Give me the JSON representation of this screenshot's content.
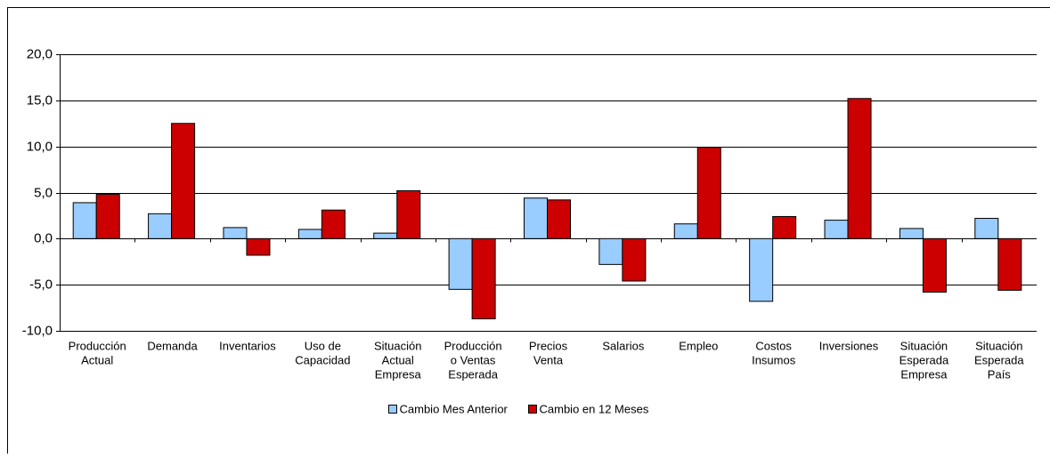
{
  "chart_data": {
    "type": "bar",
    "categories": [
      [
        "Producción",
        "Actual"
      ],
      [
        "Demanda"
      ],
      [
        "Inventarios"
      ],
      [
        "Uso de",
        "Capacidad"
      ],
      [
        "Situación",
        "Actual",
        "Empresa"
      ],
      [
        "Producción",
        "o Ventas",
        "Esperada"
      ],
      [
        "Precios",
        "Venta"
      ],
      [
        "Salarios"
      ],
      [
        "Empleo"
      ],
      [
        "Costos",
        "Insumos"
      ],
      [
        "Inversiones"
      ],
      [
        "Situación",
        "Esperada",
        "Empresa"
      ],
      [
        "Situación",
        "Esperada",
        "País"
      ]
    ],
    "series": [
      {
        "name": "Cambio Mes Anterior",
        "color": "#99ccff",
        "values": [
          3.9,
          2.7,
          1.2,
          1.0,
          0.6,
          -5.5,
          4.4,
          -2.8,
          1.6,
          -6.8,
          2.0,
          1.1,
          2.2
        ]
      },
      {
        "name": "Cambio en 12 Meses",
        "color": "#cc0000",
        "values": [
          4.8,
          12.5,
          -1.8,
          3.1,
          5.2,
          -8.7,
          4.2,
          -4.6,
          9.9,
          2.4,
          15.2,
          -5.8,
          -5.6
        ]
      }
    ],
    "ylim": [
      -10,
      20
    ],
    "yticks": [
      {
        "value": -10,
        "label": "-10,0"
      },
      {
        "value": -5,
        "label": "-5,0"
      },
      {
        "value": 0,
        "label": "0,0"
      },
      {
        "value": 5,
        "label": "5,0"
      },
      {
        "value": 10,
        "label": "10,0"
      },
      {
        "value": 15,
        "label": "15,0"
      },
      {
        "value": 20,
        "label": "20,0"
      }
    ],
    "grid": true,
    "legend": "bottom"
  }
}
